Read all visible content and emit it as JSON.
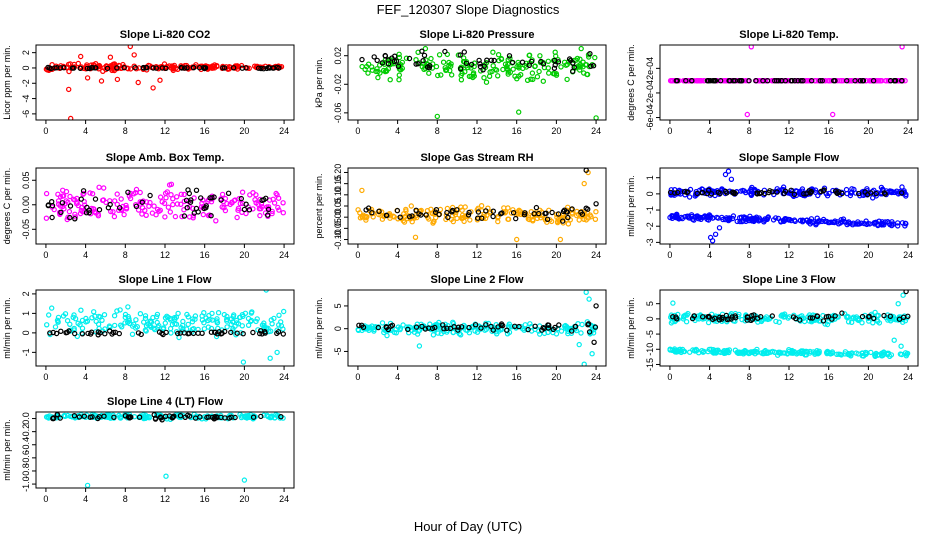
{
  "figure": {
    "title": "FEF_120307  Slope Diagnostics",
    "xlabel": "Hour of Day (UTC)"
  },
  "chart_data": [
    {
      "type": "scatter",
      "title": "Slope Li-820 CO2",
      "ylabel": "Licor ppm per min.",
      "xticks": [
        0,
        4,
        8,
        12,
        16,
        20,
        24
      ],
      "xlim": [
        -1,
        25
      ],
      "yticks": [
        -6,
        -4,
        -2,
        0,
        2
      ],
      "ylim": [
        -6.8,
        3.0
      ],
      "series": [
        {
          "color": "#ff0000",
          "band": {
            "center": 0.1,
            "spread": 0.5,
            "bias": 0.0,
            "taper": 0.7
          },
          "points": [
            [
              2.5,
              -6.6
            ],
            [
              2.3,
              -2.8
            ],
            [
              8.5,
              2.8
            ],
            [
              8.9,
              1.7
            ],
            [
              9.3,
              -1.9
            ],
            [
              10.8,
              -2.6
            ],
            [
              11.5,
              -1.6
            ],
            [
              5.6,
              -1.7
            ],
            [
              6.5,
              1.4
            ],
            [
              3.5,
              1.5
            ],
            [
              4.2,
              -1.3
            ],
            [
              7.2,
              -1.5
            ]
          ]
        },
        {
          "color": "#000000",
          "band": {
            "center": 0.0,
            "spread": 0.08,
            "bias": 0.0,
            "taper": 0.0
          },
          "points": []
        }
      ]
    },
    {
      "type": "scatter",
      "title": "Slope Li-820 Pressure",
      "ylabel": "kPa per min.",
      "xticks": [
        0,
        4,
        8,
        12,
        16,
        20,
        24
      ],
      "xlim": [
        -1,
        25
      ],
      "yticks": [
        -0.06,
        -0.02,
        0.02
      ],
      "ylim": [
        -0.07,
        0.035
      ],
      "series": [
        {
          "color": "#00cc00",
          "band": {
            "center": 0.005,
            "spread": 0.016,
            "bias": 0.0,
            "taper": 0.0
          },
          "points": [
            [
              8.0,
              -0.065
            ],
            [
              16.2,
              -0.059
            ],
            [
              24.0,
              -0.067
            ],
            [
              6.8,
              0.03
            ],
            [
              22.5,
              0.03
            ]
          ]
        },
        {
          "color": "#000000",
          "band": {
            "center": 0.012,
            "spread": 0.012,
            "bias": 0.0,
            "taper": 0.0
          },
          "points": []
        }
      ]
    },
    {
      "type": "scatter",
      "title": "Slope Li-820 Temp.",
      "ylabel": "degrees C per min.",
      "xticks": [
        0,
        4,
        8,
        12,
        16,
        20,
        24
      ],
      "xlim": [
        -1,
        25
      ],
      "yticks": [
        -0.0006,
        -0.0002,
        0.0002
      ],
      "ytick_labels": [
        "-6e-04",
        "-2e-04",
        "2e-04"
      ],
      "ylim": [
        -0.00064,
        0.00058
      ],
      "series": [
        {
          "color": "#ff00ff",
          "band": {
            "center": 0.0,
            "spread": 0.0,
            "bias": 0.0,
            "taper": 0.0
          },
          "points": [
            [
              8.2,
              0.00055
            ],
            [
              23.4,
              0.00055
            ],
            [
              7.8,
              -0.00055
            ],
            [
              16.4,
              -0.00055
            ],
            [
              0.2,
              0.0
            ]
          ]
        },
        {
          "color": "#000000",
          "band": {
            "center": 0.0,
            "spread": 0.0,
            "bias": 0.0,
            "taper": 0.0
          },
          "points": []
        }
      ]
    },
    {
      "type": "scatter",
      "title": "Slope Amb. Box Temp.",
      "ylabel": "degrees C per min.",
      "xticks": [
        0,
        4,
        8,
        12,
        16,
        20,
        24
      ],
      "xlim": [
        -1,
        25
      ],
      "yticks": [
        -0.05,
        0.0,
        0.05
      ],
      "ytick_labels": [
        "-0.05",
        "0.00",
        "0.05"
      ],
      "ylim": [
        -0.08,
        0.075
      ],
      "series": [
        {
          "color": "#ff00ff",
          "band": {
            "center": 0.0,
            "spread": 0.03,
            "bias": 0.0,
            "taper": 0.0
          },
          "points": []
        },
        {
          "color": "#000000",
          "band": {
            "center": 0.0,
            "spread": 0.025,
            "bias": 0.0,
            "taper": 0.0
          },
          "points": []
        }
      ]
    },
    {
      "type": "scatter",
      "title": "Slope Gas Stream RH",
      "ylabel": "percent per min.",
      "xticks": [
        0,
        4,
        8,
        12,
        16,
        20,
        24
      ],
      "xlim": [
        -1,
        25
      ],
      "yticks": [
        -0.1,
        -0.05,
        0.0,
        0.05,
        0.1,
        0.15,
        0.2
      ],
      "ytick_labels": [
        "-0.10",
        "-0.05",
        "0.00",
        "0.05",
        "0.10",
        "0.15",
        "0.20"
      ],
      "ylim": [
        -0.12,
        0.22
      ],
      "series": [
        {
          "color": "#ffaa00",
          "band": {
            "center": 0.01,
            "spread": 0.035,
            "bias": 0.0,
            "taper": 0.0
          },
          "points": [
            [
              23.2,
              0.2
            ],
            [
              22.8,
              0.15
            ],
            [
              0.4,
              0.12
            ],
            [
              20.4,
              -0.1
            ],
            [
              16.0,
              -0.1
            ],
            [
              5.8,
              -0.09
            ]
          ]
        },
        {
          "color": "#000000",
          "band": {
            "center": 0.02,
            "spread": 0.03,
            "bias": 0.0,
            "taper": 0.0
          },
          "points": [
            [
              23.0,
              0.21
            ],
            [
              24.0,
              0.06
            ]
          ]
        }
      ]
    },
    {
      "type": "scatter",
      "title": "Slope Sample Flow",
      "ylabel": "ml/min per min.",
      "xticks": [
        0,
        4,
        8,
        12,
        16,
        20,
        24
      ],
      "xlim": [
        -1,
        25
      ],
      "yticks": [
        -3,
        -2,
        -1,
        0,
        1
      ],
      "ylim": [
        -3.1,
        1.6
      ],
      "series": [
        {
          "color": "#0000ff",
          "band": {
            "center": 0.1,
            "spread": 0.25,
            "bias": 0.0,
            "taper": 0.0
          },
          "points": [
            [
              5.6,
              1.2
            ],
            [
              5.9,
              1.4
            ],
            [
              6.2,
              0.9
            ],
            [
              4.3,
              -2.9
            ],
            [
              4.6,
              -2.5
            ],
            [
              5.0,
              -2.1
            ],
            [
              4.1,
              -2.7
            ]
          ]
        },
        {
          "color": "#0000ff",
          "band": {
            "center": -1.4,
            "spread": 0.15,
            "bias": 0.0,
            "taper": 0.0,
            "trend": -0.02
          },
          "points": []
        },
        {
          "color": "#000000",
          "band": {
            "center": 0.1,
            "spread": 0.12,
            "bias": 0.0,
            "taper": 0.0
          },
          "points": []
        }
      ]
    },
    {
      "type": "scatter",
      "title": "Slope Line 1 Flow",
      "ylabel": "ml/min per min.",
      "xticks": [
        0,
        4,
        8,
        12,
        16,
        20,
        24
      ],
      "xlim": [
        -1,
        25
      ],
      "yticks": [
        -1,
        0,
        1,
        2
      ],
      "ylim": [
        -1.7,
        2.2
      ],
      "series": [
        {
          "color": "#00eeee",
          "band": {
            "center": 0.5,
            "spread": 0.6,
            "bias": 0.0,
            "taper": 0.0
          },
          "points": [
            [
              19.9,
              -1.5
            ],
            [
              23.3,
              -1.0
            ],
            [
              22.6,
              -1.3
            ],
            [
              22.2,
              2.2
            ]
          ]
        },
        {
          "color": "#000000",
          "band": {
            "center": 0.0,
            "spread": 0.08,
            "bias": 0.0,
            "taper": 0.0
          },
          "points": []
        }
      ]
    },
    {
      "type": "scatter",
      "title": "Slope Line 2 Flow",
      "ylabel": "ml/min per min.",
      "xticks": [
        0,
        4,
        8,
        12,
        16,
        20,
        24
      ],
      "xlim": [
        -1,
        25
      ],
      "yticks": [
        -5,
        0,
        5
      ],
      "ylim": [
        -8.2,
        8.5
      ],
      "series": [
        {
          "color": "#00eeee",
          "band": {
            "center": 0.0,
            "spread": 1.2,
            "bias": 0.0,
            "taper": 0.0
          },
          "points": [
            [
              23.0,
              8.0
            ],
            [
              23.3,
              6.5
            ],
            [
              22.8,
              -7.8
            ],
            [
              23.6,
              -5.5
            ],
            [
              22.3,
              -3.5
            ],
            [
              6.2,
              -3.8
            ]
          ]
        },
        {
          "color": "#000000",
          "band": {
            "center": 0.3,
            "spread": 0.9,
            "bias": 0.0,
            "taper": 0.0
          },
          "points": [
            [
              24.0,
              5.0
            ],
            [
              23.8,
              -3.0
            ]
          ]
        }
      ]
    },
    {
      "type": "scatter",
      "title": "Slope Line 3 Flow",
      "ylabel": "ml/min per min.",
      "xticks": [
        0,
        4,
        8,
        12,
        16,
        20,
        24
      ],
      "xlim": [
        -1,
        25
      ],
      "yticks": [
        -15,
        -10,
        -5,
        0,
        5
      ],
      "ylim": [
        -15.5,
        9.5
      ],
      "series": [
        {
          "color": "#00eeee",
          "band": {
            "center": 0.2,
            "spread": 1.5,
            "bias": 0.0,
            "taper": 0.0
          },
          "points": [
            [
              23.5,
              7.8
            ],
            [
              23.0,
              5.0
            ],
            [
              0.3,
              5.2
            ],
            [
              22.6,
              -7.0
            ],
            [
              23.3,
              -9.0
            ]
          ]
        },
        {
          "color": "#00eeee",
          "band": {
            "center": -10.5,
            "spread": 0.7,
            "bias": 0.0,
            "taper": 0.0,
            "trend": -0.05
          },
          "points": []
        },
        {
          "color": "#000000",
          "band": {
            "center": 0.5,
            "spread": 1.0,
            "bias": 0.0,
            "taper": 0.0
          },
          "points": [
            [
              23.8,
              9.0
            ]
          ]
        }
      ]
    },
    {
      "type": "scatter",
      "title": "Slope Line 4 (LT) Flow",
      "ylabel": "ml/min per min.",
      "xticks": [
        0,
        4,
        8,
        12,
        16,
        20,
        24
      ],
      "xlim": [
        -1,
        25
      ],
      "yticks": [
        -1.0,
        -0.8,
        -0.6,
        -0.4,
        -0.2,
        0.0
      ],
      "ytick_labels": [
        "-1.0",
        "-0.8",
        "-0.6",
        "-0.4",
        "-0.2",
        "0.0"
      ],
      "ylim": [
        -1.06,
        0.1
      ],
      "series": [
        {
          "color": "#00eeee",
          "band": {
            "center": 0.03,
            "spread": 0.03,
            "bias": 0.0,
            "taper": 0.0
          },
          "points": [
            [
              4.2,
              -1.02
            ],
            [
              12.1,
              -0.88
            ],
            [
              20.0,
              -0.94
            ]
          ]
        },
        {
          "color": "#000000",
          "band": {
            "center": 0.02,
            "spread": 0.03,
            "bias": 0.0,
            "taper": 0.0
          },
          "points": []
        }
      ]
    }
  ]
}
